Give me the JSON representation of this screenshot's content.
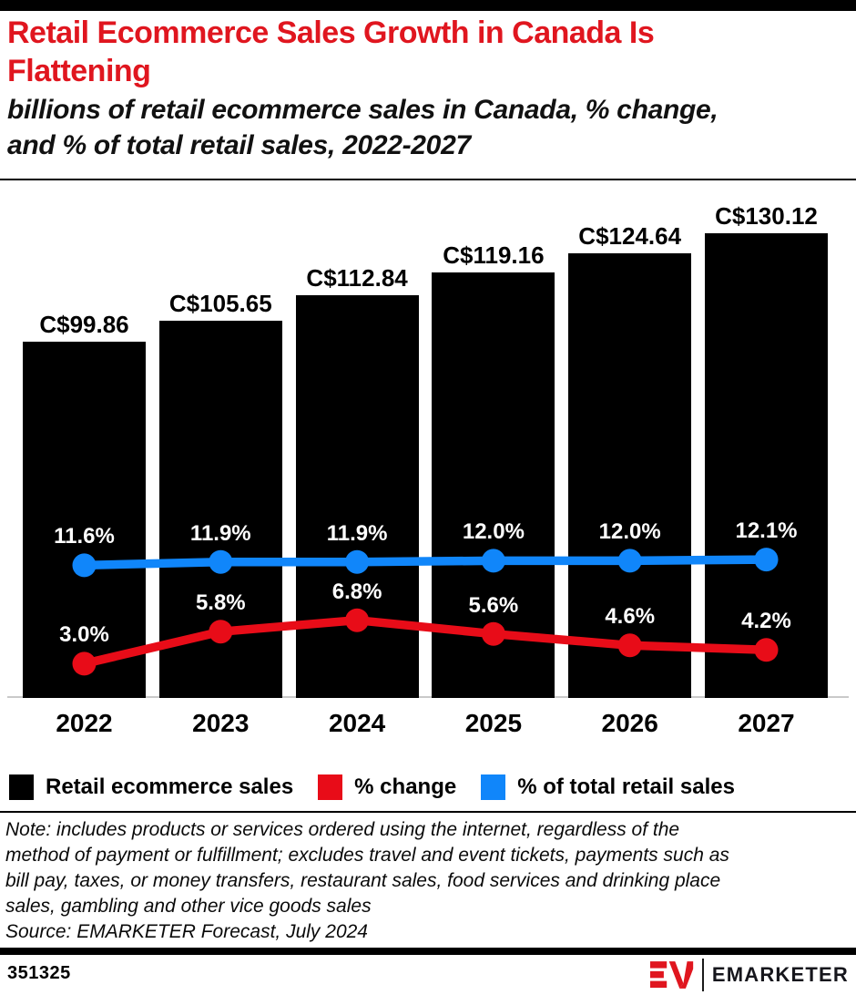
{
  "header": {
    "title": "Retail Ecommerce Sales Growth in Canada Is\nFlattening",
    "subtitle": "billions of retail ecommerce sales in Canada, % change,\nand % of total retail sales, 2022-2027"
  },
  "palette": {
    "title_red": "#e0161f",
    "bar_black": "#000000",
    "line_red": "#e80c18",
    "line_blue": "#1086fa",
    "baseline_gray": "#c9c9c9"
  },
  "chart_data": {
    "type": "bar",
    "subtype": "bar-with-two-line-series",
    "categories": [
      "2022",
      "2023",
      "2024",
      "2025",
      "2026",
      "2027"
    ],
    "series": [
      {
        "name": "Retail ecommerce sales",
        "type": "bar",
        "color": "#000000",
        "unit": "C$ billions",
        "values": [
          99.86,
          105.65,
          112.84,
          119.16,
          124.64,
          130.12
        ],
        "labels": [
          "C$99.86",
          "C$105.65",
          "C$112.84",
          "C$119.16",
          "C$124.64",
          "C$130.12"
        ]
      },
      {
        "name": "% change",
        "type": "line",
        "color": "#e80c18",
        "values": [
          3.0,
          5.8,
          6.8,
          5.6,
          4.6,
          4.2
        ],
        "labels": [
          "3.0%",
          "5.8%",
          "6.8%",
          "5.6%",
          "4.6%",
          "4.2%"
        ]
      },
      {
        "name": "% of total retail sales",
        "type": "line",
        "color": "#1086fa",
        "values": [
          11.6,
          11.9,
          11.9,
          12.0,
          12.0,
          12.1
        ],
        "labels": [
          "11.6%",
          "11.9%",
          "11.9%",
          "12.0%",
          "12.0%",
          "12.1%"
        ]
      }
    ],
    "title": "Retail Ecommerce Sales Growth in Canada Is Flattening",
    "xlabel": "",
    "ylabel": "",
    "grid": false,
    "legend_position": "bottom",
    "value_labels_shown": true
  },
  "legend": {
    "items": [
      {
        "label": "Retail ecommerce sales",
        "color": "#000000"
      },
      {
        "label": "% change",
        "color": "#e80c18"
      },
      {
        "label": "% of total retail sales",
        "color": "#1086fa"
      }
    ]
  },
  "footnote": {
    "note": "Note: includes products or services ordered using the internet, regardless of the\nmethod of payment or fulfillment; excludes travel and event tickets, payments such as\nbill pay, taxes, or money transfers, restaurant sales, food services and drinking place\nsales, gambling and other vice goods sales",
    "source": "Source: EMARKETER Forecast, July 2024"
  },
  "footer": {
    "chart_id": "351325",
    "brand": "EMARKETER"
  }
}
